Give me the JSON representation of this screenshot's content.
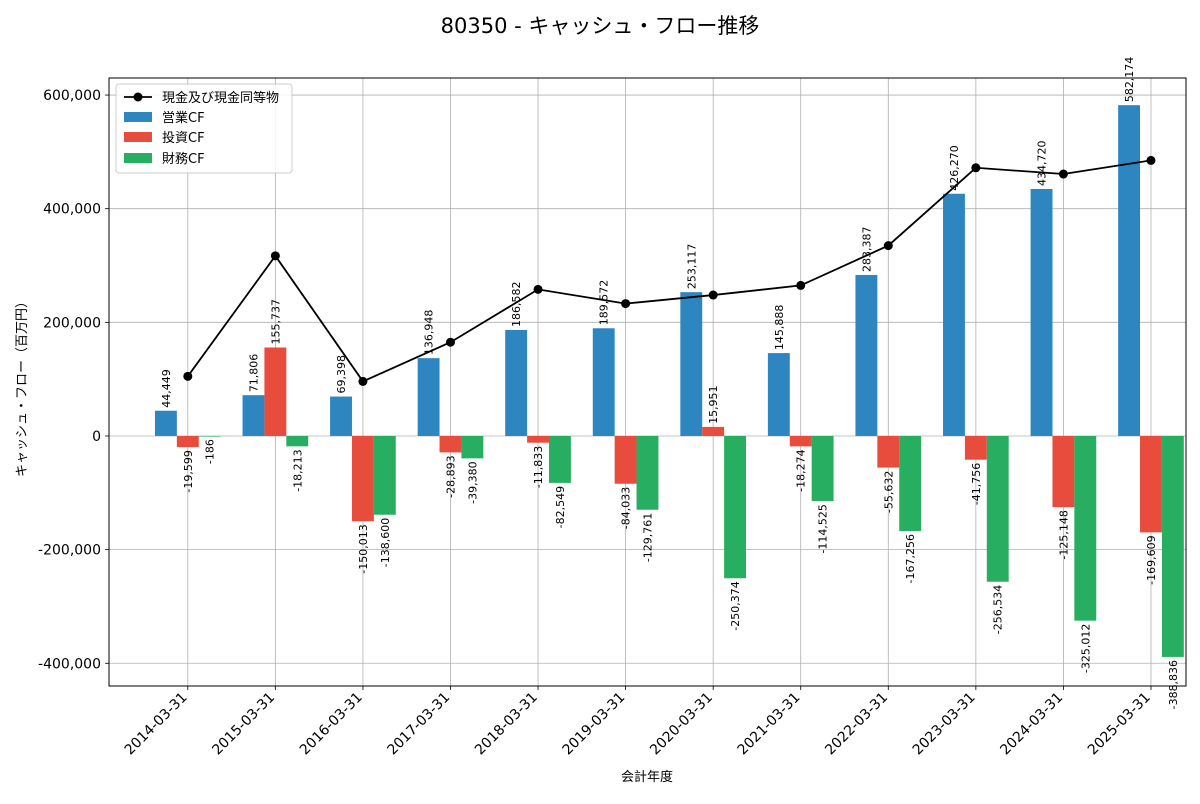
{
  "chart_data": {
    "type": "bar",
    "title": "80350 - キャッシュ・フロー推移",
    "xlabel": "会計年度",
    "ylabel": "キャッシュ・フロー（百万円）",
    "ylim": [
      -440000,
      630000
    ],
    "yticks": [
      -400000,
      -200000,
      0,
      200000,
      400000,
      600000
    ],
    "ytick_labels": [
      "-400,000",
      "-200,000",
      "0",
      "200,000",
      "400,000",
      "600,000"
    ],
    "grid": true,
    "legend_position": "top-left",
    "categories": [
      "2014-03-31",
      "2015-03-31",
      "2016-03-31",
      "2017-03-31",
      "2018-03-31",
      "2019-03-31",
      "2020-03-31",
      "2021-03-31",
      "2022-03-31",
      "2023-03-31",
      "2024-03-31",
      "2025-03-31"
    ],
    "series": [
      {
        "name": "営業CF",
        "kind": "bar",
        "color": "#2e86c1",
        "values": [
          44449,
          71806,
          69398,
          136948,
          186582,
          189572,
          253117,
          145888,
          283387,
          426270,
          434720,
          582174
        ],
        "labels": [
          "44,449",
          "71,806",
          "69,398",
          "136,948",
          "186,582",
          "189,572",
          "253,117",
          "145,888",
          "283,387",
          "426,270",
          "434,720",
          "582,174"
        ]
      },
      {
        "name": "投資CF",
        "kind": "bar",
        "color": "#e74c3c",
        "values": [
          -19599,
          155737,
          -150013,
          -28893,
          -11833,
          -84033,
          15951,
          -18274,
          -55632,
          -41756,
          -125148,
          -169609
        ],
        "labels": [
          "-19,599",
          "155,737",
          "-150,013",
          "-28,893",
          "-11,833",
          "-84,033",
          "15,951",
          "-18,274",
          "-55,632",
          "-41,756",
          "-125,148",
          "-169,609"
        ]
      },
      {
        "name": "財務CF",
        "kind": "bar",
        "color": "#27ae60",
        "values": [
          -186,
          -18213,
          -138600,
          -39380,
          -82549,
          -129761,
          -250374,
          -114525,
          -167256,
          -256534,
          -325012,
          -388836
        ],
        "labels": [
          "-186",
          "-18,213",
          "-138,600",
          "-39,380",
          "-82,549",
          "-129,761",
          "-250,374",
          "-114,525",
          "-167,256",
          "-256,534",
          "-325,012",
          "-388,836"
        ]
      },
      {
        "name": "現金及び現金同等物",
        "kind": "line",
        "color": "#000000",
        "values": [
          105000,
          317000,
          96000,
          165000,
          258000,
          233000,
          248000,
          265000,
          335000,
          472000,
          461000,
          485000
        ]
      }
    ]
  }
}
